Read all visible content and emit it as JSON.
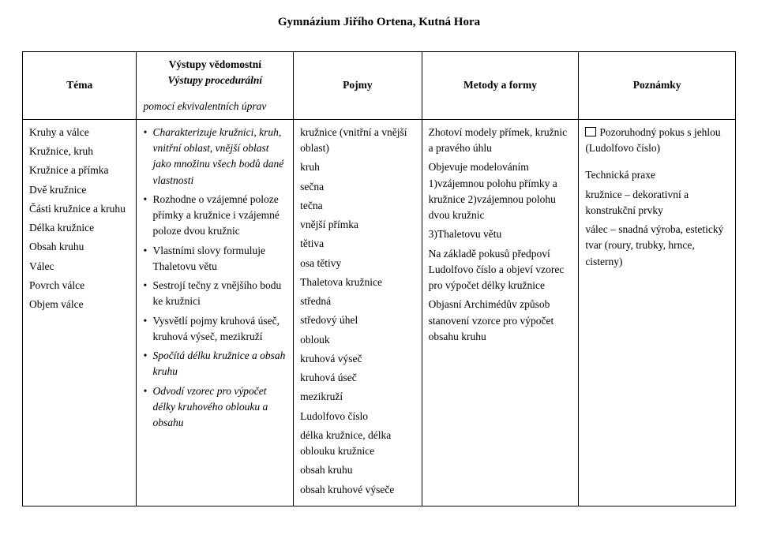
{
  "header": "Gymnázium Jiřího Ortena, Kutná Hora",
  "columns": {
    "c1": "Téma",
    "c2_line1": "Výstupy vědomostní",
    "c2_line2": "Výstupy procedurální",
    "c3": "Pojmy",
    "c4": "Metody a formy",
    "c5": "Poznámky"
  },
  "row2_continuation": "pomocí ekvivalentních úprav",
  "tema": {
    "group_title": "Kruhy a válce",
    "items": [
      "Kružnice, kruh",
      "Kružnice a přímka",
      "Dvě kružnice",
      "Části kružnice a kruhu",
      "Délka kružnice",
      "Obsah kruhu",
      "Válec",
      "Povrch válce",
      "Objem válce"
    ]
  },
  "vystupy": [
    {
      "text": "Charakterizuje kružnici, kruh, vnitřní oblast, vnější oblast jako množinu všech bodů dané vlastnosti",
      "italic": true
    },
    {
      "text": "Rozhodne o vzájemné poloze přímky a kružnice i vzájemné poloze dvou kružnic",
      "italic": false
    },
    {
      "text": "Vlastními slovy formuluje Thaletovu větu",
      "italic": false
    },
    {
      "text": "Sestrojí tečny z vnějšího bodu ke kružnici",
      "italic": false
    },
    {
      "text": "Vysvětlí pojmy kruhová úseč, kruhová výseč, mezikruží",
      "italic": false
    },
    {
      "text": "Spočítá délku kružnice a obsah kruhu",
      "italic": true
    },
    {
      "text": "Odvodí vzorec pro výpočet délky kruhového oblouku a obsahu",
      "italic": true
    }
  ],
  "pojmy": [
    "kružnice (vnitřní a vnější oblast)",
    "kruh",
    "sečna",
    "tečna",
    "vnější přímka",
    "tětiva",
    "osa tětivy",
    "Thaletova kružnice",
    "středná",
    "středový úhel",
    "oblouk",
    "kruhová výseč",
    "kruhová úseč",
    "mezikruží",
    "Ludolfovo číslo",
    "délka kružnice, délka oblouku kružnice",
    "obsah kruhu",
    "obsah kruhové výseče"
  ],
  "metody": [
    "Zhotoví modely přímek, kružnic a pravého úhlu",
    "Objevuje modelováním 1)vzájemnou polohu přímky a kružnice 2)vzájemnou polohu dvou kružnic",
    "3)Thaletovu větu",
    "Na základě pokusů předpoví Ludolfovo číslo a objeví vzorec pro výpočet délky kružnice",
    "Objasní Archimédův způsob stanovení vzorce pro výpočet obsahu kruhu"
  ],
  "poznamky": {
    "book_note": "Pozoruhodný pokus s jehlou (Ludolfovo číslo)",
    "lines": [
      "Technická praxe",
      "kružnice – dekorativní a konstrukční prvky",
      "válec – snadná výroba, estetický tvar (roury, trubky, hrnce, cisterny)"
    ]
  }
}
